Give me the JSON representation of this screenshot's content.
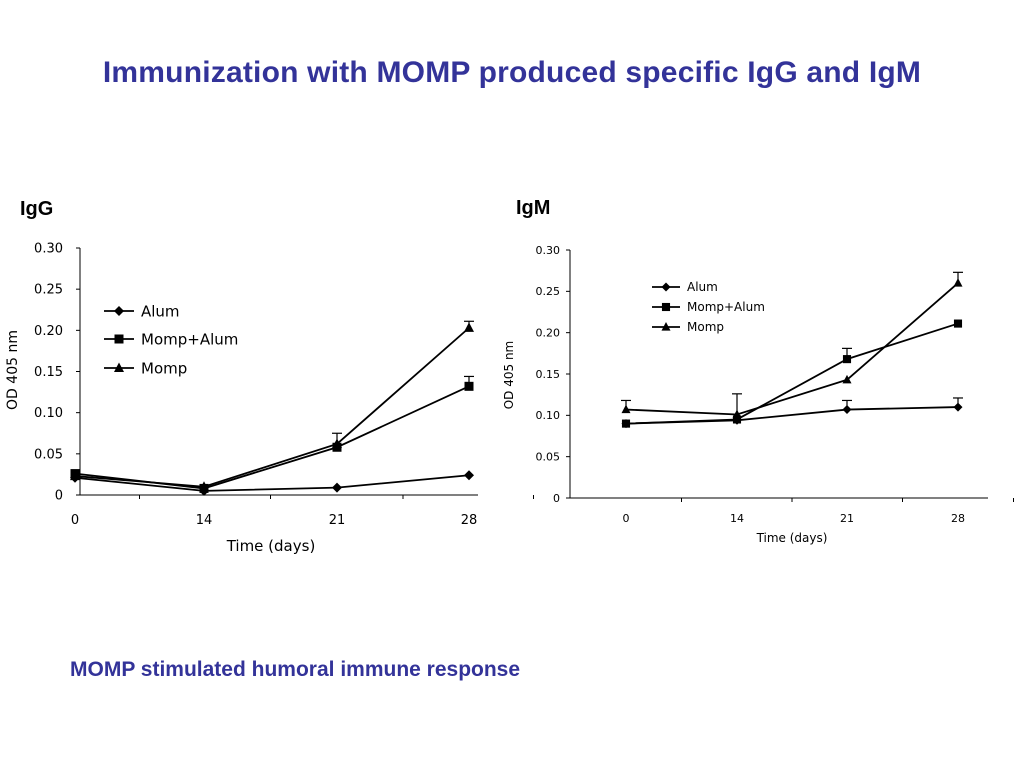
{
  "title": "Immunization with MOMP produced specific IgG and IgM",
  "caption": "MOMP stimulated humoral immune response",
  "colors": {
    "title": "#333399",
    "caption": "#333399",
    "series": "#000000"
  },
  "chart_data": [
    {
      "type": "line",
      "panel_label": "IgG",
      "xlabel": "Time (days)",
      "ylabel": "OD 405 nm",
      "categories": [
        "0",
        "14",
        "21",
        "28"
      ],
      "y_ticks": [
        "0",
        "0.05",
        "0.10",
        "0.15",
        "0.20",
        "0.25",
        "0.30"
      ],
      "ylim": [
        0,
        0.3
      ],
      "legend_position": "top-left",
      "grid": false,
      "series": [
        {
          "name": "Alum",
          "marker": "diamond",
          "values": [
            0.021,
            0.005,
            0.009,
            0.024
          ]
        },
        {
          "name": "Momp+Alum",
          "marker": "square",
          "values": [
            0.026,
            0.008,
            0.058,
            0.132
          ],
          "error": [
            0,
            0,
            0,
            0.012
          ]
        },
        {
          "name": "Momp",
          "marker": "triangle",
          "values": [
            0.023,
            0.01,
            0.062,
            0.203
          ],
          "error": [
            0,
            0,
            0.013,
            0.008
          ]
        }
      ]
    },
    {
      "type": "line",
      "panel_label": "IgM",
      "xlabel": "Time (days)",
      "ylabel": "OD 405 nm",
      "categories": [
        "0",
        "14",
        "21",
        "28"
      ],
      "y_ticks": [
        "0",
        "0.05",
        "0.10",
        "0.15",
        "0.20",
        "0.25",
        "0.30"
      ],
      "ylim": [
        0,
        0.3
      ],
      "legend_position": "top-left",
      "grid": false,
      "series": [
        {
          "name": "Alum",
          "marker": "diamond",
          "values": [
            0.09,
            0.094,
            0.107,
            0.11
          ],
          "error": [
            0,
            0,
            0.011,
            0.011
          ]
        },
        {
          "name": "Momp+Alum",
          "marker": "square",
          "values": [
            0.09,
            0.095,
            0.168,
            0.211
          ],
          "error": [
            0,
            0,
            0.013,
            0
          ]
        },
        {
          "name": "Momp",
          "marker": "triangle",
          "values": [
            0.107,
            0.101,
            0.143,
            0.26
          ],
          "error": [
            0.011,
            0.025,
            0,
            0.013
          ]
        }
      ]
    }
  ]
}
